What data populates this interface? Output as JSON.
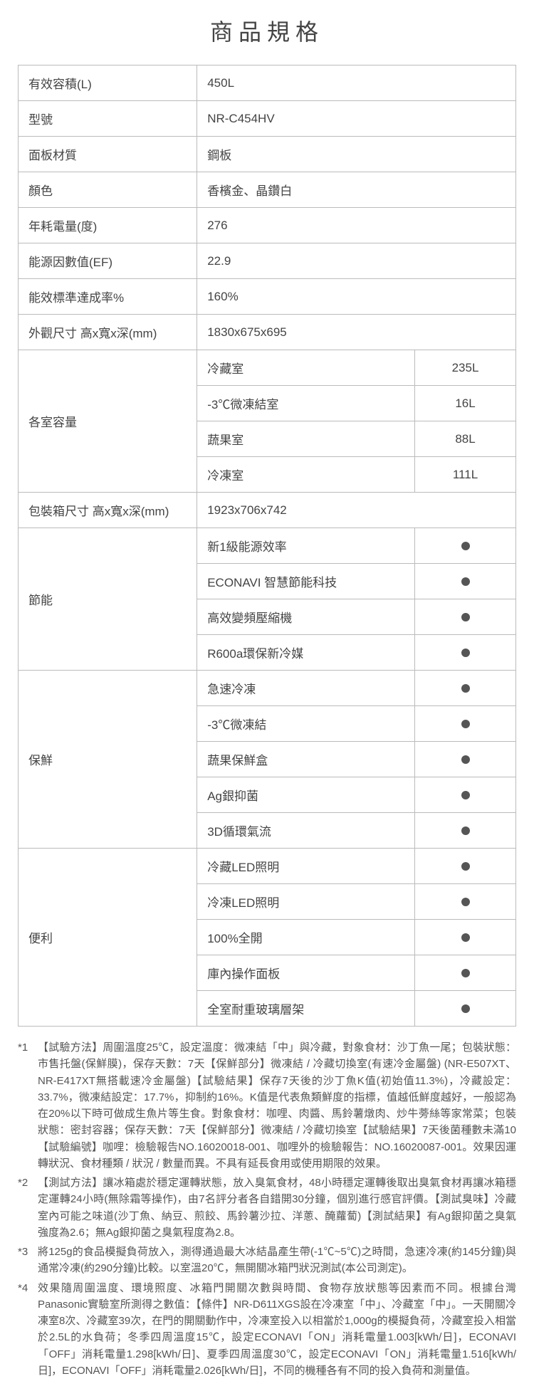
{
  "title": "商品規格",
  "specs": [
    {
      "label": "有效容積(L)",
      "value": "450L"
    },
    {
      "label": "型號",
      "value": "NR-C454HV"
    },
    {
      "label": "面板材質",
      "value": "鋼板"
    },
    {
      "label": "顏色",
      "value": "香檳金、晶鑽白"
    },
    {
      "label": "年耗電量(度)",
      "value": "276"
    },
    {
      "label": "能源因數值(EF)",
      "value": "22.9"
    },
    {
      "label": "能效標準達成率%",
      "value": "160%"
    },
    {
      "label": "外觀尺寸 高x寬x深(mm)",
      "value": "1830x675x695"
    }
  ],
  "compartments": {
    "label": "各室容量",
    "rows": [
      {
        "name": "冷藏室",
        "value": "235L"
      },
      {
        "name": "-3℃微凍結室",
        "value": "16L"
      },
      {
        "name": "蔬果室",
        "value": "88L"
      },
      {
        "name": "冷凍室",
        "value": "111L"
      }
    ]
  },
  "packaging": {
    "label": "包裝箱尺寸 高x寬x深(mm)",
    "value": "1923x706x742"
  },
  "features": [
    {
      "label": "節能",
      "items": [
        "新1級能源效率",
        "ECONAVI 智慧節能科技",
        "高效變頻壓縮機",
        "R600a環保新冷媒"
      ]
    },
    {
      "label": "保鮮",
      "items": [
        "急速冷凍",
        "-3℃微凍結",
        "蔬果保鮮盒",
        "Ag銀抑菌",
        "3D循環氣流"
      ]
    },
    {
      "label": "便利",
      "items": [
        "冷藏LED照明",
        "冷凍LED照明",
        "100%全開",
        "庫內操作面板",
        "全室耐重玻璃層架"
      ]
    }
  ],
  "footnotes": [
    {
      "marker": "*1",
      "text": "【試驗方法】周圍溫度25℃，設定溫度：微凍結「中」與冷藏，對象食材：沙丁魚一尾；包裝狀態：市售托盤(保鮮膜)，保存天數：7天【保鮮部分】微凍結 / 冷藏切換室(有速冷金屬盤) (NR-E507XT、NR-E417XT無搭載速冷金屬盤)【試驗結果】保存7天後的沙丁魚K值(初始值11.3%)，冷藏設定：33.7%，微凍結設定：17.7%，抑制約16%。K值是代表魚類鮮度的指標，值越低鮮度越好，一般認為在20%以下時可做成生魚片等生食。對象食材：咖哩、肉醬、馬鈴薯燉肉、炒牛蒡絲等家常菜；包裝狀態：密封容器；保存天數：7天【保鮮部分】微凍結 / 冷藏切換室【試驗結果】7天後菌種數未滿10　【試驗編號】咖哩：檢驗報告NO.16020018-001、咖哩外的檢驗報告：NO.16020087-001。效果因運轉狀況、食材種類 / 狀況 / 數量而異。不具有延長食用或使用期限的效果。"
    },
    {
      "marker": "*2",
      "text": "【測試方法】讓冰箱處於穩定運轉狀態，放入臭氣食材，48小時穩定運轉後取出臭氣食材再讓冰箱穩定運轉24小時(無除霜等操作)，由7名評分者各自錯開30分鐘，個別進行感官評價。【測試臭味】冷藏室內可能之味道(沙丁魚、納豆、煎餃、馬鈴薯沙拉、洋蔥、醃蘿蔔)【測試結果】有Ag銀抑菌之臭氣強度為2.6；無Ag銀抑菌之臭氣程度為2.8。"
    },
    {
      "marker": "*3",
      "text": "將125g的食品模擬負荷放入，測得通過最大冰結晶產生帶(-1℃~5℃)之時間，急速冷凍(約145分鐘)與通常冷凍(約290分鐘)比較。以室溫20℃，無開關冰箱門狀況測試(本公司測定)。"
    },
    {
      "marker": "*4",
      "text": "效果隨周圍溫度、環境照度、冰箱門開關次數與時間、食物存放狀態等因素而不同。根據台灣Panasonic實驗室所測得之數值：【條件】NR-D611XGS設在冷凍室「中」、冷藏室「中」。一天開關冷凍室8次、冷藏室39次，在門的開關動作中，冷凍室投入以相當於1,000g的模擬負荷，冷藏室投入相當於2.5L的水負荷；冬季四周溫度15℃，設定ECONAVI「ON」消耗電量1.003[kWh/日]，ECONAVI「OFF」消耗電量1.298[kWh/日]、夏季四周溫度30℃，設定ECONAVI「ON」消耗電量1.516[kWh/日]，ECONAVI「OFF」消耗電量2.026[kWh/日]，不同的機種各有不同的投入負荷和測量值。"
    }
  ],
  "styling": {
    "title_fontsize": 32,
    "title_letterspacing": 8,
    "cell_fontsize": 17,
    "footnote_fontsize": 15,
    "border_color": "#bbbbbb",
    "text_color": "#444444",
    "dot_color": "#555555",
    "background_color": "#ffffff",
    "col_label_width": 230,
    "col_sublabel_width": 280,
    "col_dot_width": 130
  }
}
